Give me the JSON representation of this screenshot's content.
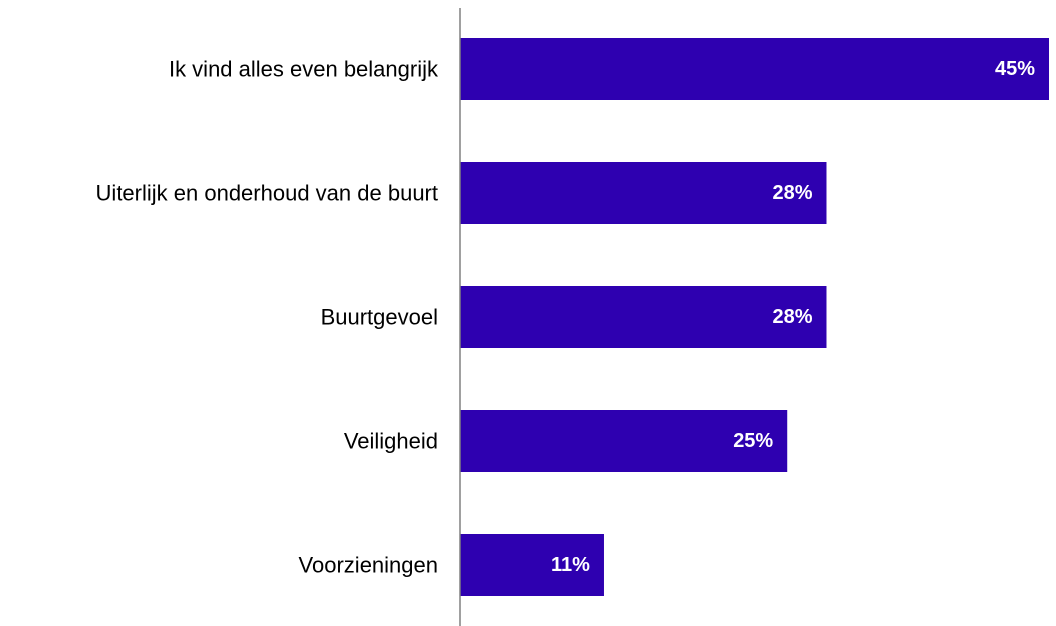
{
  "chart_data": {
    "type": "bar",
    "orientation": "horizontal",
    "categories": [
      "Ik vind alles even belangrijk",
      "Uiterlijk en onderhoud van de buurt",
      "Buurtgevoel",
      "Veiligheid",
      "Voorzieningen"
    ],
    "values": [
      45,
      28,
      28,
      25,
      11
    ],
    "value_labels": [
      "45%",
      "28%",
      "28%",
      "25%",
      "11%"
    ],
    "unit": "%",
    "xlim": [
      0,
      45
    ],
    "grid": false,
    "legend": "none",
    "title": "",
    "xlabel": "",
    "ylabel": ""
  },
  "colors": {
    "bar": "#2e00b0",
    "axis": "#808080",
    "label_text": "#000000",
    "value_text": "#ffffff"
  }
}
